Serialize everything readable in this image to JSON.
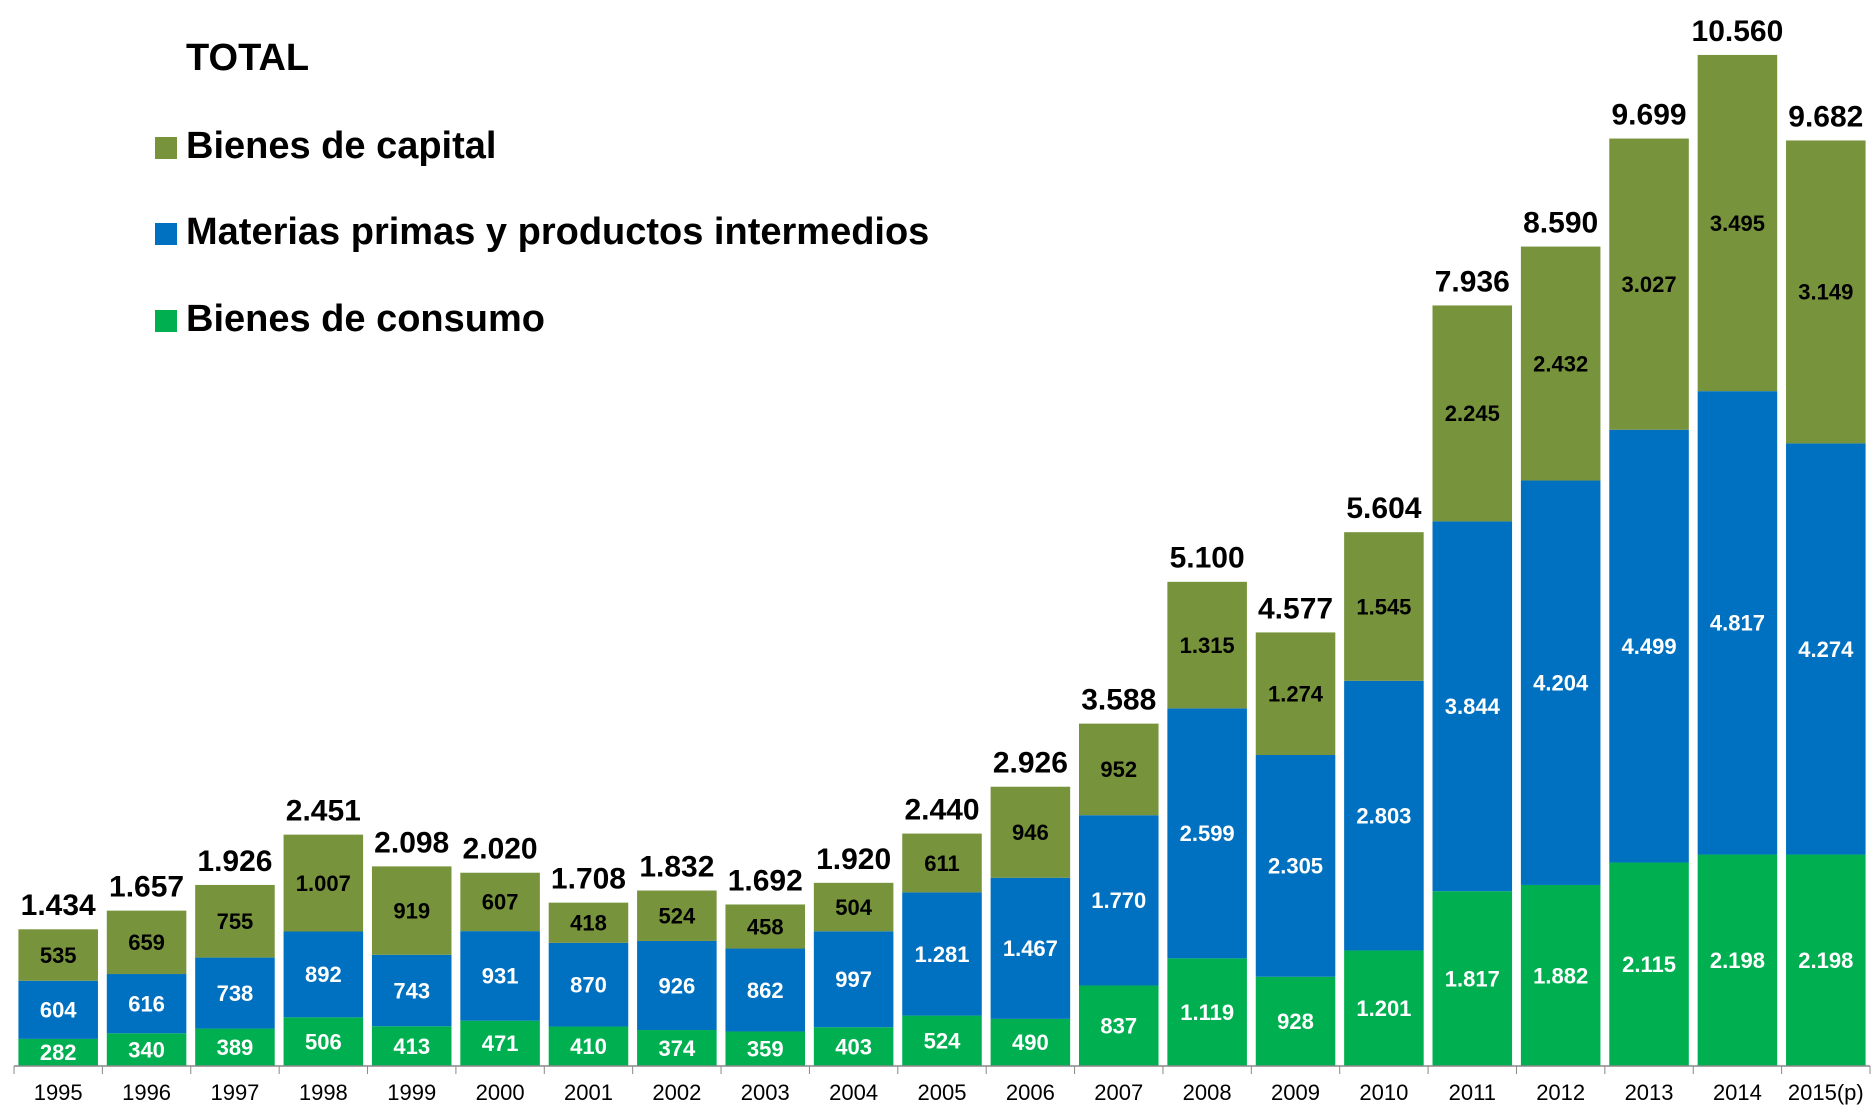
{
  "chart_data": {
    "type": "stacked_bar",
    "legend_title": "TOTAL",
    "categories": [
      "1995",
      "1996",
      "1997",
      "1998",
      "1999",
      "2000",
      "2001",
      "2002",
      "2003",
      "2004",
      "2005",
      "2006",
      "2007",
      "2008",
      "2009",
      "2010",
      "2011",
      "2012",
      "2013",
      "2014",
      "2015(p)"
    ],
    "series": [
      {
        "name": "Bienes de consumo",
        "color": "#00b050",
        "label_color": "#ffffff",
        "values": [
          282,
          340,
          389,
          506,
          413,
          471,
          410,
          374,
          359,
          403,
          524,
          490,
          837,
          1119,
          928,
          1201,
          1817,
          1882,
          2115,
          2198,
          2198
        ],
        "value_labels": [
          "282",
          "340",
          "389",
          "506",
          "413",
          "471",
          "410",
          "374",
          "359",
          "403",
          "524",
          "490",
          "837",
          "1.119",
          "928",
          "1.201",
          "1.817",
          "1.882",
          "2.115",
          "2.198",
          "2.198"
        ]
      },
      {
        "name": "Materias primas y productos intermedios",
        "color": "#0070c0",
        "label_color": "#ffffff",
        "values": [
          604,
          616,
          738,
          892,
          743,
          931,
          870,
          926,
          862,
          997,
          1281,
          1467,
          1770,
          2599,
          2305,
          2803,
          3844,
          4204,
          4499,
          4817,
          4274
        ],
        "value_labels": [
          "604",
          "616",
          "738",
          "892",
          "743",
          "931",
          "870",
          "926",
          "862",
          "997",
          "1.281",
          "1.467",
          "1.770",
          "2.599",
          "2.305",
          "2.803",
          "3.844",
          "4.204",
          "4.499",
          "4.817",
          "4.274"
        ]
      },
      {
        "name": "Bienes de capital",
        "color": "#77933c",
        "label_color": "#000000",
        "values": [
          535,
          659,
          755,
          1007,
          919,
          607,
          418,
          524,
          458,
          504,
          611,
          946,
          952,
          1315,
          1274,
          1545,
          2245,
          2432,
          3027,
          3495,
          3149
        ],
        "value_labels": [
          "535",
          "659",
          "755",
          "1.007",
          "919",
          "607",
          "418",
          "524",
          "458",
          "504",
          "611",
          "946",
          "952",
          "1.315",
          "1.274",
          "1.545",
          "2.245",
          "2.432",
          "3.027",
          "3.495",
          "3.149"
        ]
      }
    ],
    "totals": {
      "values": [
        1434,
        1657,
        1926,
        2451,
        2098,
        2020,
        1708,
        1832,
        1692,
        1920,
        2440,
        2926,
        3588,
        5100,
        4577,
        5604,
        7936,
        8590,
        9699,
        10560,
        9682
      ],
      "value_labels": [
        "1.434",
        "1.657",
        "1.926",
        "2.451",
        "2.098",
        "2.020",
        "1.708",
        "1.832",
        "1.692",
        "1.920",
        "2.440",
        "2.926",
        "3.588",
        "5.100",
        "4.577",
        "5.604",
        "7.936",
        "8.590",
        "9.699",
        "10.560",
        "9.682"
      ]
    }
  }
}
